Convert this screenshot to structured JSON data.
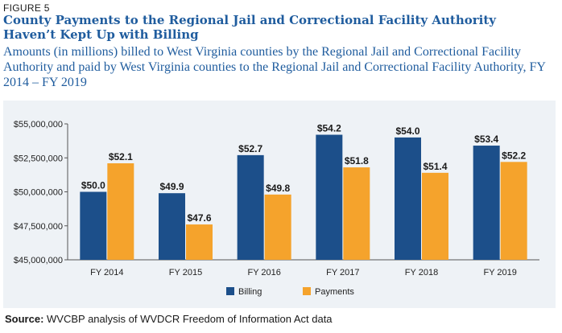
{
  "figure_label": "FIGURE 5",
  "title_line1": "County Payments to the Regional Jail and Correctional Facility Authority",
  "title_line2": "Haven’t Kept Up with Billing",
  "subtitle": "Amounts (in millions) billed to West Virginia counties by the Regional Jail and Correctional Facility Authority and paid by West Virginia counties to the Regional Jail and Correctional Facility Authority, FY 2014 – FY 2019",
  "source_label": "Source:",
  "source_text": "WVCBP analysis of WVDCR Freedom of Information Act data",
  "colors": {
    "billing": "#1c4f8a",
    "payments": "#f5a32c",
    "title": "#1f5c9e"
  },
  "chart_data": {
    "type": "bar",
    "categories": [
      "FY 2014",
      "FY 2015",
      "FY 2016",
      "FY 2017",
      "FY 2018",
      "FY 2019"
    ],
    "series": [
      {
        "name": "Billing",
        "values": [
          50.0,
          49.9,
          52.7,
          54.2,
          54.0,
          53.4
        ],
        "labels": [
          "$50.0",
          "$49.9",
          "$52.7",
          "$54.2",
          "$54.0",
          "$53.4"
        ]
      },
      {
        "name": "Payments",
        "values": [
          52.1,
          47.6,
          49.8,
          51.8,
          51.4,
          52.2
        ],
        "labels": [
          "$52.1",
          "$47.6",
          "$49.8",
          "$51.8",
          "$51.4",
          "$52.2"
        ]
      }
    ],
    "ylim": [
      45,
      55
    ],
    "yticks": [
      45,
      47.5,
      50,
      52.5,
      55
    ],
    "ytick_labels": [
      "$45,000,000",
      "$47,500,000",
      "$50,000,000",
      "$52,500,000",
      "$55,000,000"
    ],
    "legend": [
      "Billing",
      "Payments"
    ],
    "legend_position": "bottom-center",
    "grid": false
  }
}
